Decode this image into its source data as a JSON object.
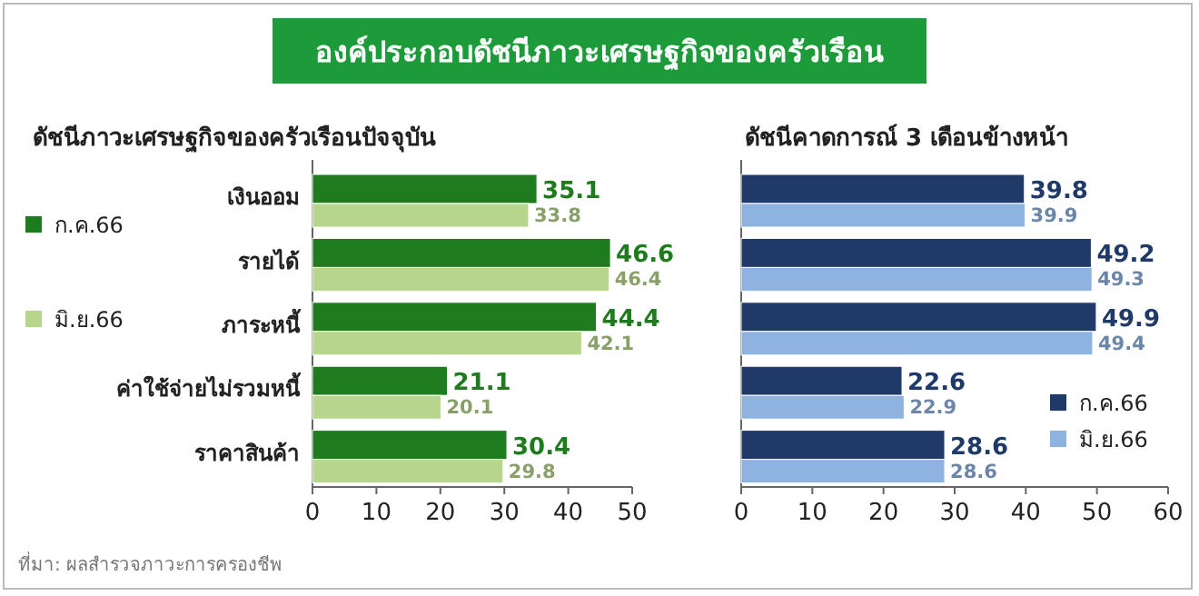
{
  "chart_data": [
    {
      "type": "bar",
      "orientation": "horizontal",
      "title": "องค์ประกอบดัชนีภาวะเศรษฐกิจของครัวเรือน",
      "subtitle": "ดัชนีภาวะเศรษฐกิจของครัวเรือนปัจจุบัน",
      "categories": [
        "เงินออม",
        "รายได้",
        "ภาระหนี้",
        "ค่าใช้จ่ายไม่รวมหนี้",
        "ราคาสินค้า"
      ],
      "series": [
        {
          "name": "ก.ค.66",
          "color": "#1e7b1e",
          "values": [
            35.1,
            46.6,
            44.4,
            21.1,
            30.4
          ]
        },
        {
          "name": "มิ.ย.66",
          "color": "#b7d58c",
          "values": [
            33.8,
            46.4,
            42.1,
            20.1,
            29.8
          ]
        }
      ],
      "xlim": [
        0,
        50
      ],
      "xticks": [
        0,
        10,
        20,
        30,
        40,
        50
      ],
      "data_labels": true,
      "legend": "left",
      "annotations": [
        "ที่มา: ผลสำรวจภาวะการครองชีพ"
      ]
    },
    {
      "type": "bar",
      "orientation": "horizontal",
      "subtitle": "ดัชนีคาดการณ์ 3 เดือนข้างหน้า",
      "categories": [
        null,
        null,
        null,
        null,
        null
      ],
      "series": [
        {
          "name": "ก.ค.66",
          "color": "#1f3a68",
          "values": [
            39.8,
            49.2,
            49.9,
            22.6,
            28.6
          ]
        },
        {
          "name": "มิ.ย.66",
          "color": "#8fb3e0",
          "values": [
            39.9,
            49.3,
            49.4,
            22.9,
            28.6
          ]
        }
      ],
      "xlim": [
        0,
        60
      ],
      "xticks": [
        0,
        10,
        20,
        30,
        40,
        50,
        60
      ],
      "data_labels": true,
      "legend": "bottom right",
      "tick_labels": "x"
    }
  ]
}
